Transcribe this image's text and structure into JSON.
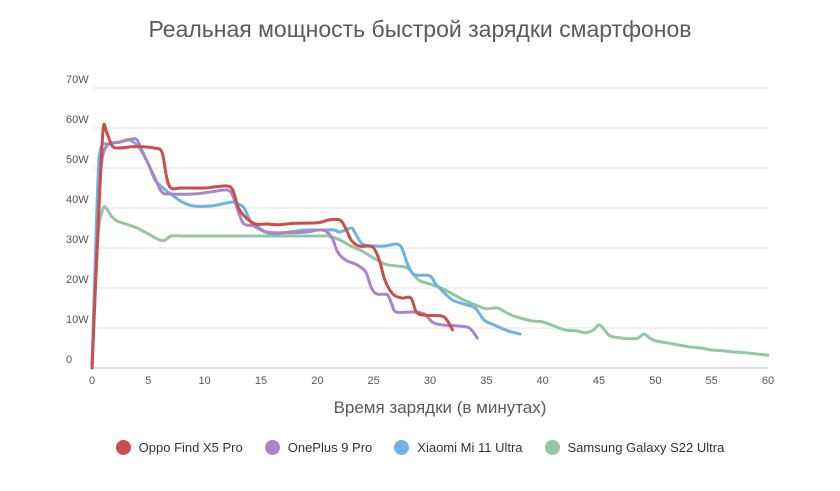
{
  "chart_data": {
    "type": "line",
    "title": "Реальная мощность быстрой зарядки смартфонов",
    "xlabel": "Время зарядки (в минутах)",
    "ylabel": "",
    "xlim": [
      0,
      60
    ],
    "ylim": [
      0,
      70
    ],
    "x_ticks": [
      0,
      5,
      10,
      15,
      20,
      25,
      30,
      35,
      40,
      45,
      50,
      55,
      60
    ],
    "y_ticks": [
      0,
      10,
      20,
      30,
      40,
      50,
      60,
      70
    ],
    "y_tick_labels": [
      "0",
      "10W",
      "20W",
      "30W",
      "40W",
      "50W",
      "60W",
      "70W"
    ],
    "grid": true,
    "legend_position": "bottom",
    "series": [
      {
        "name": "Oppo Find X5 Pro",
        "color": "#c94f4f",
        "points": [
          [
            0,
            0
          ],
          [
            0.3,
            20
          ],
          [
            0.7,
            45
          ],
          [
            1.0,
            60
          ],
          [
            1.3,
            59
          ],
          [
            1.8,
            55.5
          ],
          [
            2.5,
            55
          ],
          [
            3.5,
            55.3
          ],
          [
            4.5,
            55.3
          ],
          [
            5.5,
            55
          ],
          [
            6.2,
            54
          ],
          [
            6.6,
            48
          ],
          [
            7.0,
            45
          ],
          [
            8,
            45
          ],
          [
            10,
            45
          ],
          [
            11,
            45.3
          ],
          [
            12,
            45.5
          ],
          [
            12.5,
            44.5
          ],
          [
            13,
            40
          ],
          [
            13.7,
            37.5
          ],
          [
            14.5,
            36
          ],
          [
            15.5,
            36
          ],
          [
            16.5,
            35.8
          ],
          [
            18,
            36.2
          ],
          [
            20,
            36.3
          ],
          [
            21,
            37
          ],
          [
            22,
            37
          ],
          [
            22.5,
            35
          ],
          [
            23,
            32
          ],
          [
            23.7,
            30.5
          ],
          [
            24.5,
            30.5
          ],
          [
            25,
            30
          ],
          [
            25.5,
            27
          ],
          [
            26,
            22
          ],
          [
            26.7,
            18.5
          ],
          [
            27.5,
            17.5
          ],
          [
            28.3,
            17.5
          ],
          [
            28.8,
            14
          ],
          [
            29.5,
            13.2
          ],
          [
            31,
            13
          ],
          [
            31.5,
            12
          ],
          [
            32,
            9.5
          ]
        ]
      },
      {
        "name": "OnePlus 9 Pro",
        "color": "#a985c6",
        "points": [
          [
            0,
            0
          ],
          [
            0.5,
            35
          ],
          [
            0.8,
            50
          ],
          [
            1.3,
            55.5
          ],
          [
            2.5,
            56.5
          ],
          [
            3.5,
            57.2
          ],
          [
            4.0,
            57
          ],
          [
            4.5,
            54
          ],
          [
            5.5,
            48
          ],
          [
            6.2,
            44
          ],
          [
            7,
            43.5
          ],
          [
            9,
            43.5
          ],
          [
            10.5,
            44
          ],
          [
            12,
            44.5
          ],
          [
            12.5,
            43
          ],
          [
            13,
            39
          ],
          [
            13.5,
            36
          ],
          [
            14.5,
            35.5
          ],
          [
            15.5,
            34
          ],
          [
            17,
            33.8
          ],
          [
            19,
            34
          ],
          [
            20.5,
            34.5
          ],
          [
            21.3,
            32.5
          ],
          [
            21.8,
            29
          ],
          [
            22.5,
            27
          ],
          [
            23.5,
            25.8
          ],
          [
            24.3,
            24
          ],
          [
            24.8,
            20
          ],
          [
            25.3,
            18.5
          ],
          [
            26.2,
            18.3
          ],
          [
            26.6,
            16
          ],
          [
            27,
            14
          ],
          [
            28.5,
            14
          ],
          [
            29.5,
            13.5
          ],
          [
            30.2,
            11.5
          ],
          [
            31,
            10.8
          ],
          [
            32.5,
            10.5
          ],
          [
            33.5,
            10
          ],
          [
            34.2,
            7.5
          ]
        ]
      },
      {
        "name": "Xiaomi Mi 11 Ultra",
        "color": "#6db3e3",
        "points": [
          [
            0,
            0
          ],
          [
            0.5,
            45
          ],
          [
            0.8,
            55
          ],
          [
            1.5,
            56
          ],
          [
            2.5,
            56.5
          ],
          [
            3.3,
            57
          ],
          [
            4.2,
            55
          ],
          [
            5,
            51
          ],
          [
            5.6,
            47
          ],
          [
            6.3,
            45
          ],
          [
            7,
            43.5
          ],
          [
            8,
            41.5
          ],
          [
            9,
            40.5
          ],
          [
            10.5,
            40.5
          ],
          [
            11.5,
            41
          ],
          [
            12.5,
            41.5
          ],
          [
            13,
            41
          ],
          [
            13.5,
            40
          ],
          [
            14.2,
            36
          ],
          [
            15,
            34.5
          ],
          [
            16,
            33.5
          ],
          [
            17,
            33.8
          ],
          [
            18,
            34.2
          ],
          [
            19,
            34.5
          ],
          [
            20.5,
            34.5
          ],
          [
            21.5,
            34.5
          ],
          [
            22,
            34
          ],
          [
            23,
            35
          ],
          [
            23.3,
            34
          ],
          [
            24,
            31
          ],
          [
            25,
            30.5
          ],
          [
            26,
            30.5
          ],
          [
            27,
            31
          ],
          [
            27.5,
            30
          ],
          [
            28,
            26
          ],
          [
            28.5,
            23.5
          ],
          [
            29,
            23.2
          ],
          [
            30,
            23
          ],
          [
            30.5,
            21
          ],
          [
            31,
            19.5
          ],
          [
            32,
            17
          ],
          [
            33,
            16
          ],
          [
            34,
            15
          ],
          [
            34.8,
            12
          ],
          [
            35.5,
            11
          ],
          [
            36.3,
            10
          ],
          [
            37,
            9.2
          ],
          [
            38,
            8.5
          ]
        ]
      },
      {
        "name": "Samsung Galaxy S22 Ultra",
        "color": "#93c7a4",
        "points": [
          [
            0,
            0
          ],
          [
            0.3,
            20
          ],
          [
            0.6,
            35
          ],
          [
            1.0,
            40
          ],
          [
            1.3,
            39.8
          ],
          [
            1.7,
            38
          ],
          [
            2.2,
            36.8
          ],
          [
            3,
            36
          ],
          [
            4,
            35
          ],
          [
            5,
            33.5
          ],
          [
            6,
            32
          ],
          [
            6.5,
            32
          ],
          [
            7,
            33
          ],
          [
            8,
            33
          ],
          [
            10,
            33
          ],
          [
            15,
            33
          ],
          [
            20,
            33
          ],
          [
            21,
            33
          ],
          [
            22,
            32
          ],
          [
            23,
            30.5
          ],
          [
            24,
            29.2
          ],
          [
            25,
            27.5
          ],
          [
            26,
            26
          ],
          [
            27,
            25.5
          ],
          [
            28,
            25
          ],
          [
            29,
            22
          ],
          [
            30,
            21
          ],
          [
            31,
            20
          ],
          [
            32,
            18.5
          ],
          [
            33,
            17
          ],
          [
            34,
            15.8
          ],
          [
            35,
            14.8
          ],
          [
            36,
            15
          ],
          [
            37,
            13.5
          ],
          [
            38,
            12.5
          ],
          [
            39,
            11.8
          ],
          [
            40,
            11.5
          ],
          [
            41,
            10.5
          ],
          [
            42,
            9.5
          ],
          [
            43,
            9.3
          ],
          [
            43.8,
            8.8
          ],
          [
            44.5,
            9.5
          ],
          [
            45,
            10.8
          ],
          [
            45.5,
            9.5
          ],
          [
            46,
            8
          ],
          [
            47,
            7.5
          ],
          [
            48,
            7.3
          ],
          [
            48.5,
            7.5
          ],
          [
            49,
            8.5
          ],
          [
            49.5,
            7.5
          ],
          [
            50,
            6.8
          ],
          [
            51,
            6.3
          ],
          [
            52,
            5.8
          ],
          [
            53,
            5.3
          ],
          [
            54,
            5
          ],
          [
            55,
            4.5
          ],
          [
            56,
            4.3
          ],
          [
            57,
            4
          ],
          [
            58,
            3.8
          ],
          [
            59,
            3.5
          ],
          [
            60,
            3.2
          ]
        ]
      }
    ]
  }
}
